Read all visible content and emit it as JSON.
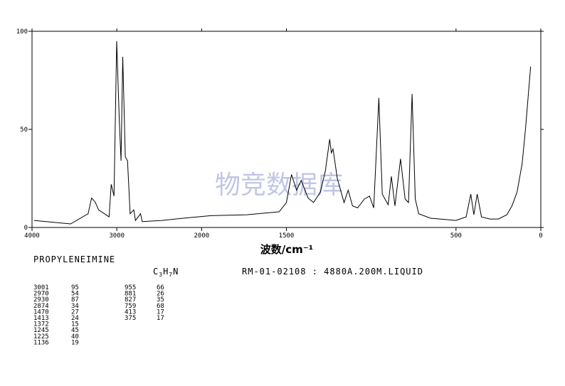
{
  "chart_data": {
    "type": "line",
    "x": [
      3975,
      3545,
      3339,
      3298,
      3256,
      3215,
      3091,
      3066,
      3033,
      3001,
      2970,
      2950,
      2930,
      2900,
      2874,
      2843,
      2800,
      2780,
      2720,
      2700,
      2470,
      2220,
      1945,
      1734,
      1543,
      1500,
      1470,
      1440,
      1413,
      1372,
      1340,
      1300,
      1270,
      1245,
      1235,
      1225,
      1200,
      1160,
      1136,
      1110,
      1080,
      1040,
      1010,
      985,
      955,
      935,
      900,
      881,
      860,
      827,
      800,
      780,
      759,
      740,
      720,
      650,
      500,
      440,
      413,
      395,
      375,
      350,
      300,
      250,
      200,
      170,
      140,
      110,
      90,
      60
    ],
    "series": [
      {
        "name": "PROPYLENEIMINE",
        "color": "#000000",
        "values": [
          3.6,
          1.8,
          7,
          15,
          13,
          9,
          5.4,
          22,
          16,
          95,
          54,
          34,
          87,
          36,
          34,
          7,
          9,
          3.6,
          7,
          3,
          3.6,
          4.7,
          6,
          6.5,
          8,
          12.7,
          27,
          19,
          24,
          15,
          12.7,
          18,
          29,
          45,
          38,
          40,
          25,
          12.7,
          19,
          11,
          10,
          14.5,
          16,
          10,
          66,
          17,
          11.6,
          26,
          11,
          35,
          14.5,
          12.7,
          68,
          14.5,
          7,
          4.7,
          3.6,
          5.4,
          17,
          6.5,
          17,
          5.4,
          4.3,
          4.3,
          6.5,
          11,
          18,
          32.6,
          50.7,
          82
        ]
      }
    ],
    "xlim": [
      4000,
      0
    ],
    "xbreak": 2000,
    "xticks": [
      4000,
      3000,
      2000,
      1500,
      500,
      0
    ],
    "ylim": [
      0,
      100
    ],
    "yticks": [
      0,
      50,
      100
    ],
    "xlabel": "波数/cm⁻¹",
    "watermark": "物竞数据库",
    "compound": "PROPYLENEIMINE",
    "formula": [
      "C",
      "3",
      "H",
      "7",
      "N"
    ],
    "sample": "RM-01-02108 : 4880A.200M.LIQUID",
    "peaks": [
      [
        [
          3001,
          95
        ],
        [
          2970,
          54
        ],
        [
          2930,
          87
        ],
        [
          2874,
          34
        ],
        [
          1470,
          27
        ],
        [
          1413,
          24
        ],
        [
          1372,
          15
        ],
        [
          1245,
          45
        ],
        [
          1225,
          40
        ],
        [
          1136,
          19
        ]
      ],
      [
        [
          955,
          66
        ],
        [
          881,
          26
        ],
        [
          827,
          35
        ],
        [
          759,
          68
        ],
        [
          413,
          17
        ],
        [
          375,
          17
        ]
      ]
    ]
  }
}
